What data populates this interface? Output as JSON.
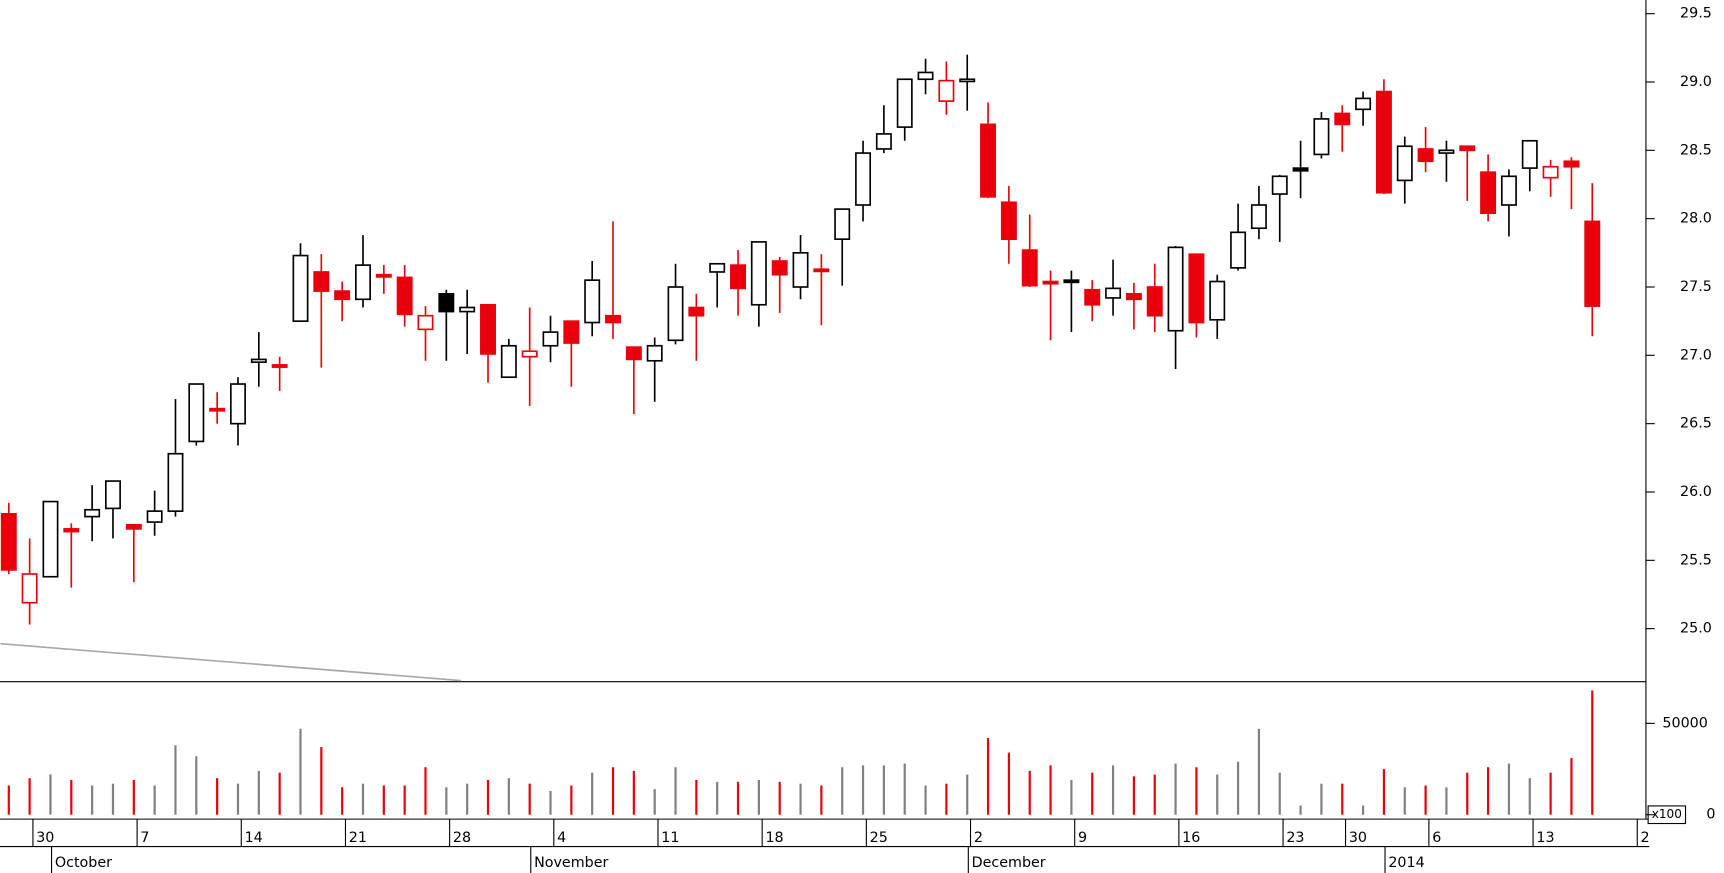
{
  "chart_data": [
    {
      "type": "candlestick",
      "open": [
        25.84,
        25.19,
        25.38,
        25.73,
        25.82,
        25.88,
        25.76,
        25.78,
        25.86,
        26.37,
        26.61,
        26.5,
        26.95,
        26.93,
        27.25,
        27.61,
        27.47,
        27.41,
        27.59,
        27.57,
        27.19,
        27.45,
        27.32,
        27.37,
        26.84,
        26.99,
        27.07,
        27.25,
        27.24,
        27.29,
        27.06,
        26.96,
        27.11,
        27.35,
        27.61,
        27.66,
        27.37,
        27.69,
        27.5,
        27.63,
        27.85,
        28.1,
        28.51,
        28.67,
        29.02,
        28.86,
        29.01,
        28.69,
        28.12,
        27.77,
        27.54,
        27.55,
        27.48,
        27.42,
        27.45,
        27.5,
        27.18,
        27.74,
        27.26,
        27.64,
        27.93,
        28.18,
        28.37,
        28.47,
        28.77,
        28.8,
        28.93,
        28.28,
        28.51,
        28.48,
        28.53,
        28.34,
        28.1,
        28.37,
        28.3,
        28.42,
        27.98
      ],
      "high": [
        25.92,
        25.66,
        25.93,
        25.77,
        26.05,
        26.08,
        25.76,
        26.01,
        26.68,
        26.79,
        26.73,
        26.84,
        27.17,
        26.99,
        27.82,
        27.74,
        27.54,
        27.88,
        27.66,
        27.66,
        27.36,
        27.48,
        27.48,
        27.37,
        27.12,
        27.35,
        27.29,
        27.25,
        27.69,
        27.98,
        27.06,
        27.13,
        27.67,
        27.45,
        27.67,
        27.77,
        27.83,
        27.72,
        27.88,
        27.74,
        28.07,
        28.57,
        28.83,
        29.02,
        29.17,
        29.15,
        29.2,
        28.85,
        28.24,
        28.03,
        27.62,
        27.62,
        27.55,
        27.7,
        27.53,
        27.67,
        27.8,
        27.74,
        27.59,
        28.11,
        28.24,
        28.32,
        28.57,
        28.78,
        28.83,
        28.93,
        29.02,
        28.6,
        28.67,
        28.57,
        28.53,
        28.47,
        28.36,
        28.57,
        28.43,
        28.45,
        28.26
      ],
      "low": [
        25.4,
        25.03,
        25.38,
        25.3,
        25.64,
        25.66,
        25.34,
        25.68,
        25.82,
        26.34,
        26.5,
        26.34,
        26.77,
        26.74,
        27.25,
        26.91,
        27.25,
        27.35,
        27.45,
        27.21,
        26.96,
        26.96,
        27.01,
        26.8,
        26.84,
        26.63,
        26.95,
        26.77,
        27.14,
        27.12,
        26.57,
        26.66,
        27.08,
        26.96,
        27.35,
        27.29,
        27.21,
        27.31,
        27.41,
        27.22,
        27.51,
        27.98,
        28.48,
        28.57,
        28.91,
        28.76,
        28.79,
        28.15,
        27.67,
        27.5,
        27.11,
        27.17,
        27.25,
        27.29,
        27.19,
        27.17,
        26.9,
        27.13,
        27.12,
        27.62,
        27.85,
        27.83,
        28.15,
        28.44,
        28.49,
        28.68,
        28.18,
        28.11,
        28.34,
        28.27,
        28.13,
        27.98,
        27.87,
        28.2,
        28.16,
        28.07,
        27.14
      ],
      "close": [
        25.43,
        25.4,
        25.93,
        25.71,
        25.87,
        26.08,
        25.73,
        25.86,
        26.28,
        26.79,
        26.6,
        26.79,
        26.97,
        26.92,
        27.73,
        27.47,
        27.41,
        27.66,
        27.58,
        27.3,
        27.29,
        27.32,
        27.35,
        27.01,
        27.07,
        27.03,
        27.17,
        27.09,
        27.55,
        27.24,
        26.97,
        27.07,
        27.5,
        27.29,
        27.67,
        27.49,
        27.83,
        27.59,
        27.75,
        27.62,
        28.07,
        28.48,
        28.62,
        29.02,
        29.07,
        29.01,
        29.02,
        28.16,
        27.85,
        27.51,
        27.53,
        27.54,
        27.37,
        27.49,
        27.41,
        27.29,
        27.79,
        27.24,
        27.54,
        27.9,
        28.1,
        28.31,
        28.35,
        28.73,
        28.69,
        28.88,
        28.19,
        28.53,
        28.42,
        28.5,
        28.5,
        28.04,
        28.31,
        28.57,
        28.38,
        28.38,
        27.36
      ],
      "colors": [
        "#e8000c",
        "#e8000c",
        "#000000",
        "#e8000c",
        "#000000",
        "#000000",
        "#e8000c",
        "#000000",
        "#000000",
        "#000000",
        "#e8000c",
        "#000000",
        "#000000",
        "#e8000c",
        "#000000",
        "#e8000c",
        "#e8000c",
        "#000000",
        "#e8000c",
        "#e8000c",
        "#e8000c",
        "#000000",
        "#000000",
        "#e8000c",
        "#000000",
        "#e8000c",
        "#000000",
        "#e8000c",
        "#000000",
        "#e8000c",
        "#e8000c",
        "#000000",
        "#000000",
        "#e8000c",
        "#000000",
        "#e8000c",
        "#000000",
        "#e8000c",
        "#000000",
        "#e8000c",
        "#000000",
        "#000000",
        "#000000",
        "#000000",
        "#000000",
        "#e8000c",
        "#000000",
        "#e8000c",
        "#e8000c",
        "#e8000c",
        "#e8000c",
        "#000000",
        "#e8000c",
        "#000000",
        "#e8000c",
        "#e8000c",
        "#000000",
        "#e8000c",
        "#000000",
        "#000000",
        "#000000",
        "#000000",
        "#000000",
        "#000000",
        "#e8000c",
        "#000000",
        "#e8000c",
        "#000000",
        "#e8000c",
        "#000000",
        "#e8000c",
        "#e8000c",
        "#000000",
        "#000000",
        "#e8000c",
        "#e8000c",
        "#e8000c"
      ],
      "overlay": {
        "color": "#a8a8a8",
        "x": [
          -0.4,
          21.7
        ],
        "values": [
          24.89,
          24.62
        ]
      },
      "ylim": [
        24.62,
        29.6
      ],
      "yticks": [
        {
          "value": 25,
          "label": "25.0"
        },
        25.5,
        {
          "value": 26,
          "label": "26.0"
        },
        26.5,
        {
          "value": 27,
          "label": "27.0"
        },
        27.5,
        {
          "value": 28,
          "label": "28.0"
        },
        28.5,
        {
          "value": 29,
          "label": "29.0"
        },
        29.5
      ]
    },
    {
      "type": "bar",
      "values": [
        16000,
        20000,
        22000,
        19000,
        16000,
        17000,
        19000,
        16000,
        38000,
        32000,
        20000,
        17000,
        24000,
        23000,
        47000,
        37000,
        15000,
        17000,
        16000,
        16000,
        26000,
        15000,
        17000,
        19000,
        20000,
        17000,
        13000,
        16000,
        23000,
        26000,
        24000,
        14000,
        26000,
        19000,
        18000,
        18000,
        19000,
        18000,
        17000,
        16000,
        26000,
        27000,
        27000,
        28000,
        16000,
        17000,
        22000,
        42000,
        34000,
        24000,
        27000,
        19000,
        23000,
        27000,
        21000,
        22000,
        28000,
        26000,
        22000,
        29000,
        47000,
        23000,
        5000,
        17000,
        17000,
        5000,
        25000,
        15000,
        16000,
        15000,
        23000,
        26000,
        28000,
        20000,
        23000,
        31000,
        68000
      ],
      "colors": [
        "#e8000c",
        "#e8000c",
        "#808080",
        "#e8000c",
        "#808080",
        "#808080",
        "#e8000c",
        "#808080",
        "#808080",
        "#808080",
        "#e8000c",
        "#808080",
        "#808080",
        "#e8000c",
        "#808080",
        "#e8000c",
        "#e8000c",
        "#808080",
        "#e8000c",
        "#e8000c",
        "#e8000c",
        "#808080",
        "#808080",
        "#e8000c",
        "#808080",
        "#e8000c",
        "#808080",
        "#e8000c",
        "#808080",
        "#e8000c",
        "#e8000c",
        "#808080",
        "#808080",
        "#e8000c",
        "#808080",
        "#e8000c",
        "#808080",
        "#e8000c",
        "#808080",
        "#e8000c",
        "#808080",
        "#808080",
        "#808080",
        "#808080",
        "#808080",
        "#e8000c",
        "#808080",
        "#e8000c",
        "#e8000c",
        "#e8000c",
        "#e8000c",
        "#808080",
        "#e8000c",
        "#808080",
        "#e8000c",
        "#e8000c",
        "#808080",
        "#e8000c",
        "#808080",
        "#808080",
        "#808080",
        "#808080",
        "#808080",
        "#808080",
        "#e8000c",
        "#808080",
        "#e8000c",
        "#808080",
        "#e8000c",
        "#808080",
        "#e8000c",
        "#e8000c",
        "#808080",
        "#808080",
        "#e8000c",
        "#e8000c",
        "#e8000c"
      ],
      "ylim": [
        0,
        72800
      ],
      "yticks": [
        0,
        50000
      ],
      "unit_label": "x100",
      "day_ticks": [
        {
          "value": 1,
          "label": "30"
        },
        {
          "value": 6,
          "label": "7"
        },
        {
          "value": 11,
          "label": "14"
        },
        {
          "value": 16,
          "label": "21"
        },
        {
          "value": 21,
          "label": "28"
        },
        {
          "value": 26,
          "label": "4"
        },
        {
          "value": 31,
          "label": "11"
        },
        {
          "value": 36,
          "label": "18"
        },
        {
          "value": 41,
          "label": "25"
        },
        {
          "value": 46,
          "label": "2"
        },
        {
          "value": 51,
          "label": "9"
        },
        {
          "value": 56,
          "label": "16"
        },
        {
          "value": 61,
          "label": "23"
        },
        {
          "value": 64,
          "label": "30"
        },
        {
          "value": 68,
          "label": "6"
        },
        {
          "value": 73,
          "label": "13"
        },
        {
          "value": 78,
          "label": "2"
        }
      ],
      "month_ticks": [
        {
          "value": 2,
          "label": "October"
        },
        {
          "value": 25,
          "label": "November"
        },
        {
          "value": 46,
          "label": "December"
        },
        {
          "value": 66,
          "label": "2014"
        }
      ]
    }
  ]
}
